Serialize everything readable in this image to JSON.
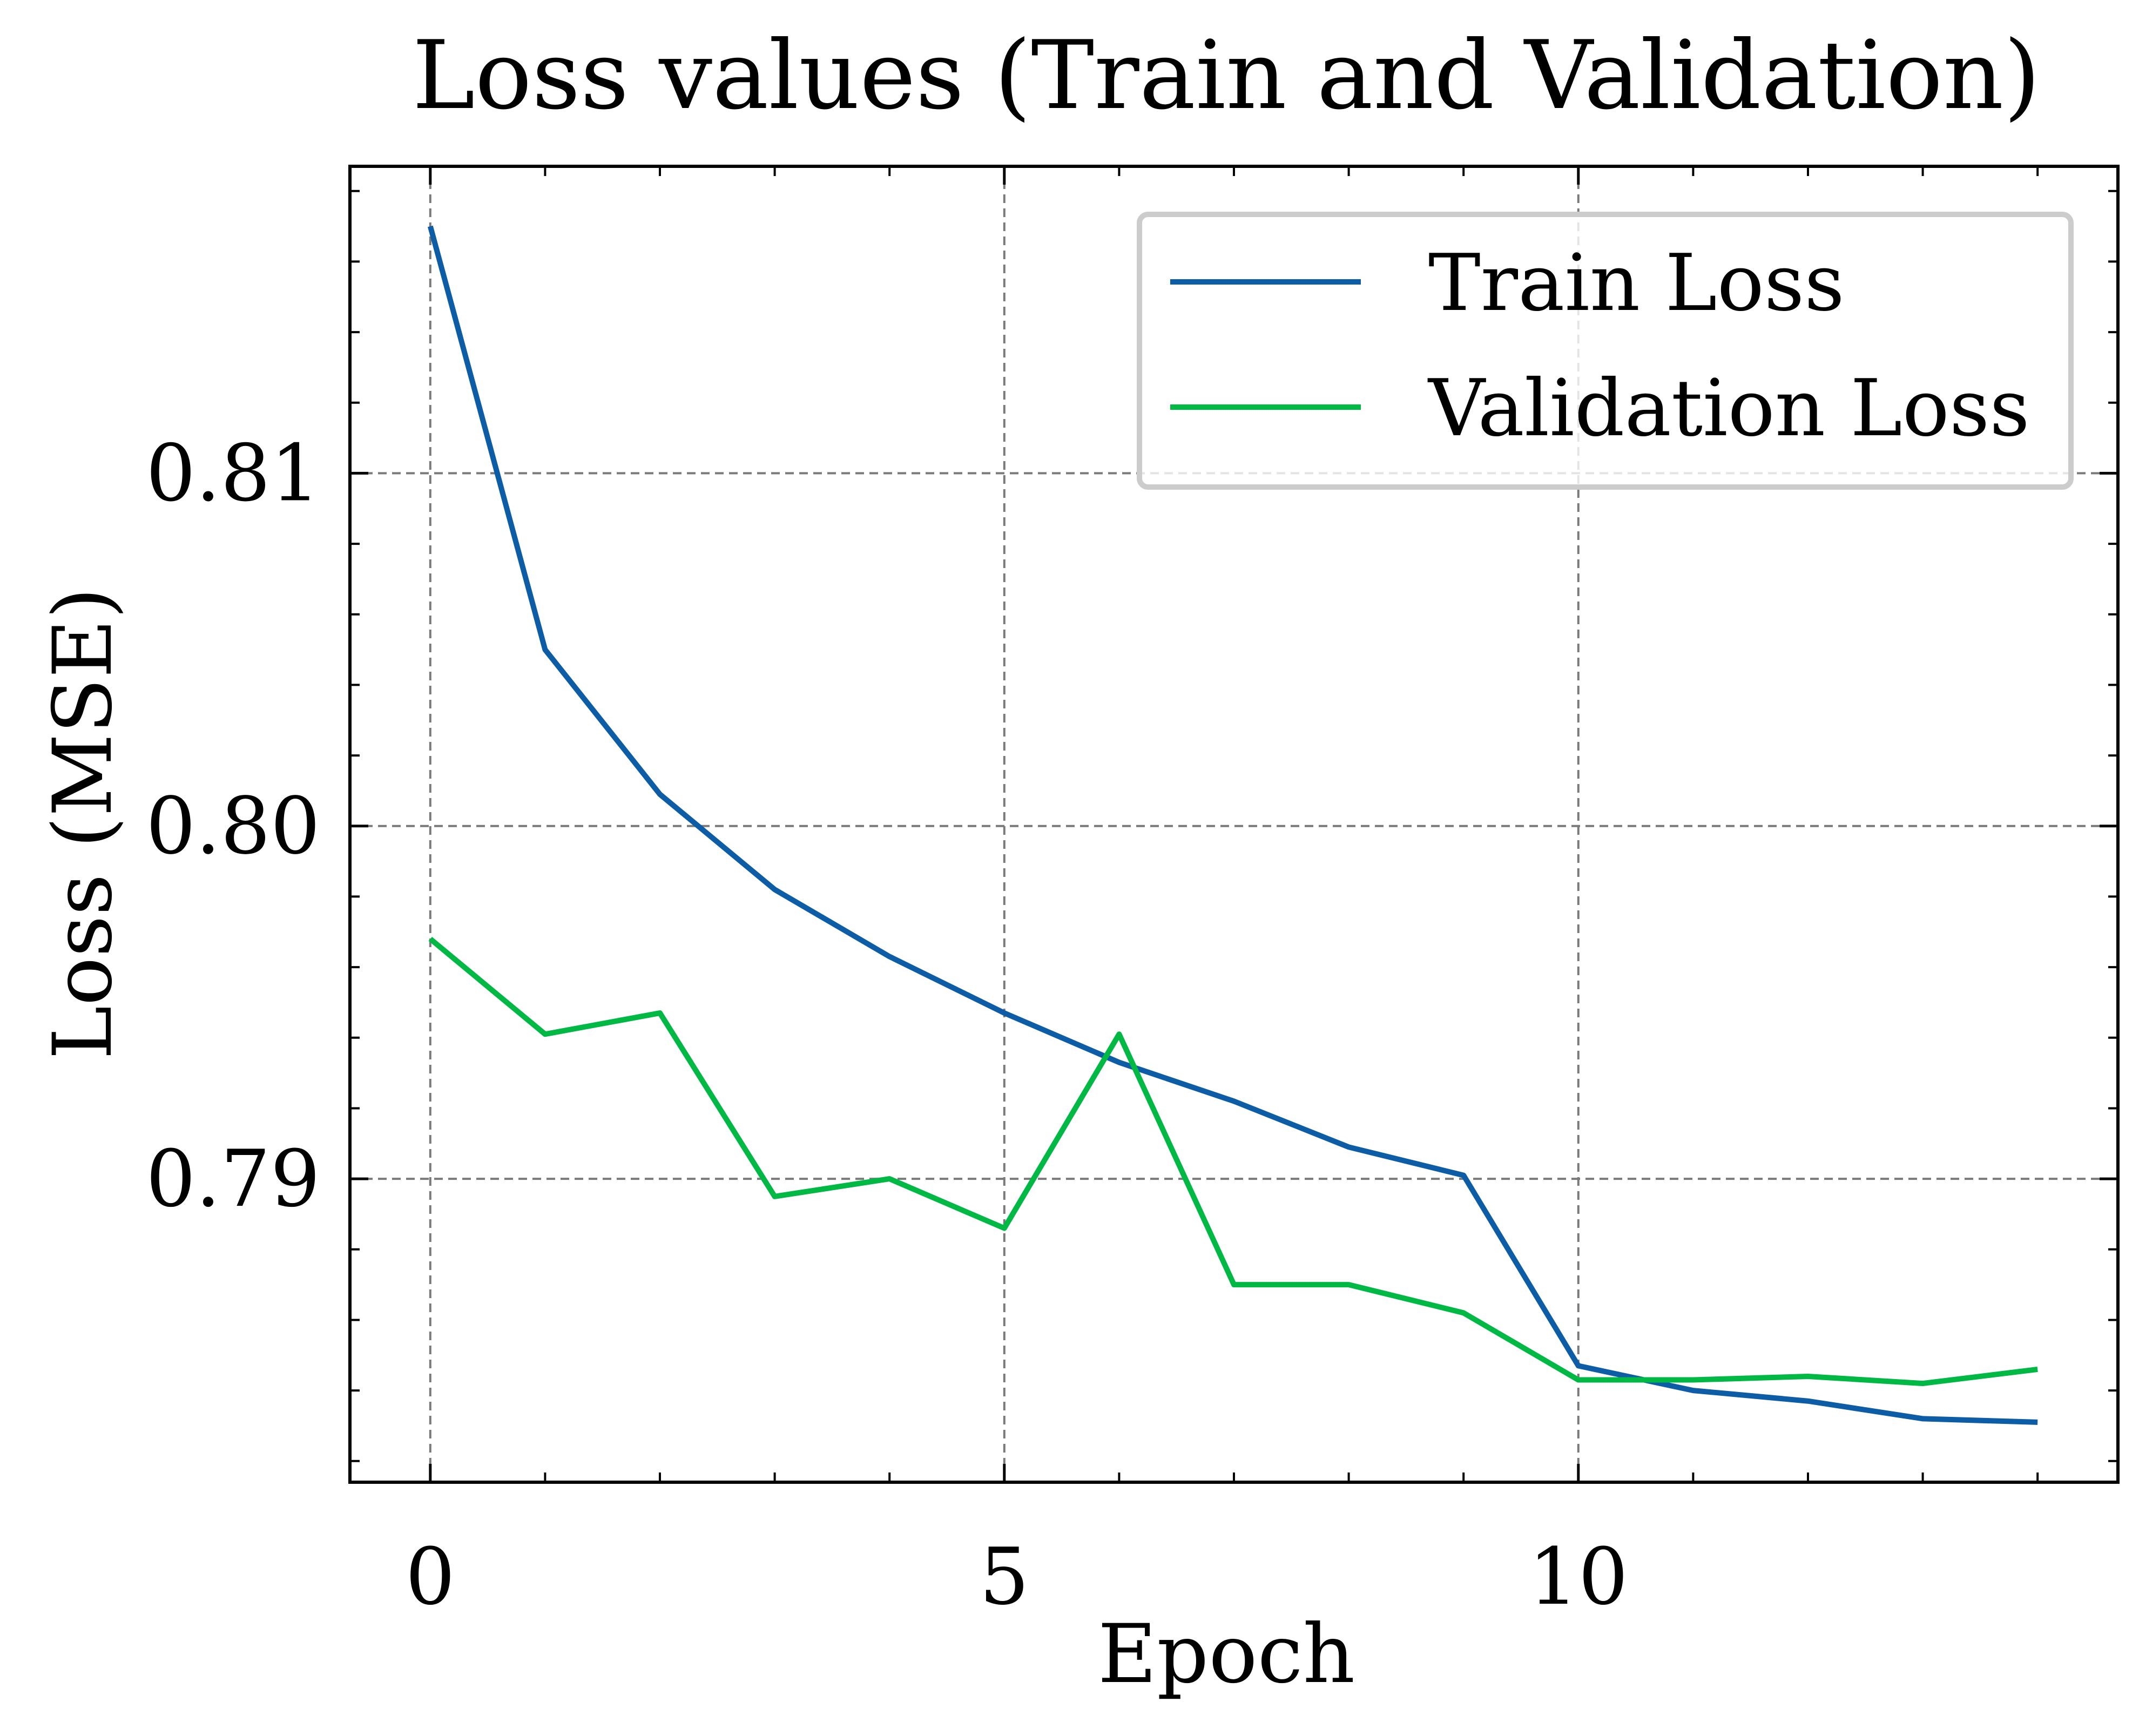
{
  "chart_data": {
    "type": "line",
    "title": "Loss values (Train and Validation)",
    "xlabel": "Epoch",
    "ylabel": "Loss (MSE)",
    "xlim": [
      -0.7,
      14.7
    ],
    "ylim": [
      0.7814,
      0.8187
    ],
    "xticks": [
      0,
      5,
      10
    ],
    "yticks": [
      0.79,
      0.8,
      0.81
    ],
    "xtick_labels": [
      "0",
      "5",
      "10"
    ],
    "ytick_labels": [
      "0.79",
      "0.80",
      "0.81"
    ],
    "grid": true,
    "legend_position": "top-right",
    "series": [
      {
        "name": "Train Loss",
        "color": "#0C5DA5",
        "x": [
          0,
          1,
          2,
          3,
          4,
          5,
          6,
          7,
          8,
          9,
          10,
          11,
          12,
          13,
          14
        ],
        "y": [
          0.817,
          0.805,
          0.8009,
          0.7982,
          0.7963,
          0.7947,
          0.7933,
          0.7922,
          0.7909,
          0.7901,
          0.7847,
          0.784,
          0.7837,
          0.7832,
          0.7831
        ]
      },
      {
        "name": "Validation Loss",
        "color": "#00B945",
        "x": [
          0,
          1,
          2,
          3,
          4,
          5,
          6,
          7,
          8,
          9,
          10,
          11,
          12,
          13,
          14
        ],
        "y": [
          0.7968,
          0.7941,
          0.7947,
          0.7895,
          0.79,
          0.7886,
          0.7941,
          0.787,
          0.787,
          0.7862,
          0.7843,
          0.7843,
          0.7844,
          0.7842,
          0.7846
        ]
      }
    ]
  }
}
